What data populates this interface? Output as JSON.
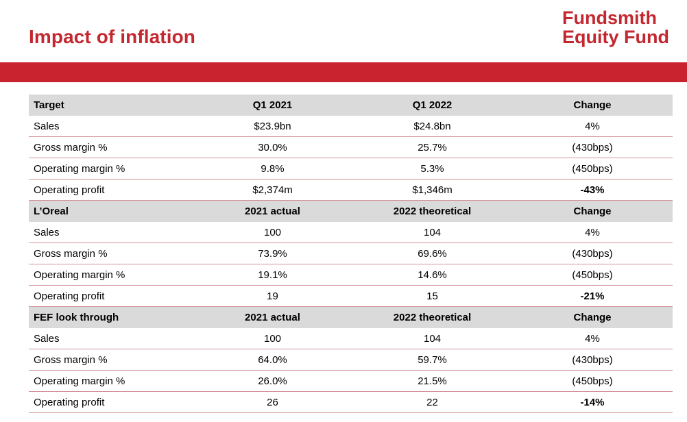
{
  "slide": {
    "title": "Impact of inflation"
  },
  "logo": {
    "line1": "Fundsmith",
    "line2": "Equity Fund"
  },
  "sections": [
    {
      "header": [
        "Target",
        "Q1 2021",
        "Q1 2022",
        "Change"
      ],
      "rows": [
        [
          "Sales",
          "$23.9bn",
          "$24.8bn",
          "4%"
        ],
        [
          "Gross margin %",
          "30.0%",
          "25.7%",
          "(430bps)"
        ],
        [
          "Operating margin %",
          "9.8%",
          "5.3%",
          "(450bps)"
        ],
        [
          "Operating profit",
          "$2,374m",
          "$1,346m",
          "-43%"
        ]
      ]
    },
    {
      "header": [
        "L’Oreal",
        "2021 actual",
        "2022 theoretical",
        "Change"
      ],
      "rows": [
        [
          "Sales",
          "100",
          "104",
          "4%"
        ],
        [
          "Gross margin %",
          "73.9%",
          "69.6%",
          "(430bps)"
        ],
        [
          "Operating margin %",
          "19.1%",
          "14.6%",
          "(450bps)"
        ],
        [
          "Operating profit",
          "19",
          "15",
          "-21%"
        ]
      ]
    },
    {
      "header": [
        "FEF look through",
        "2021 actual",
        "2022 theoretical",
        "Change"
      ],
      "rows": [
        [
          "Sales",
          "100",
          "104",
          "4%"
        ],
        [
          "Gross margin %",
          "64.0%",
          "59.7%",
          "(430bps)"
        ],
        [
          "Operating margin %",
          "26.0%",
          "21.5%",
          "(450bps)"
        ],
        [
          "Operating profit",
          "26",
          "22",
          "-14%"
        ]
      ]
    }
  ]
}
